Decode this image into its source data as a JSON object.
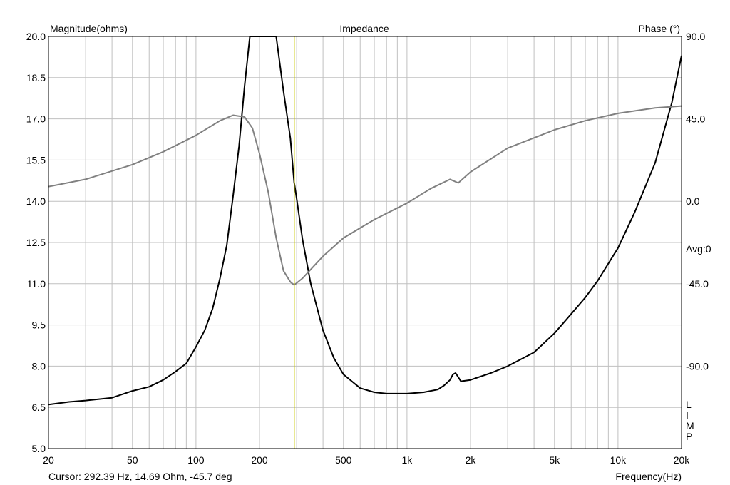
{
  "chart_data": {
    "type": "line",
    "title": "Impedance",
    "ylabel": "Magnitude(ohms)",
    "y2label": "Phase (°)",
    "xlabel": "Frequency(Hz)",
    "x_scale": "log",
    "xlim": [
      20,
      20000
    ],
    "ylim": [
      5.0,
      20.0
    ],
    "y2lim": [
      -135,
      90
    ],
    "x_ticks": [
      {
        "v": 20,
        "t": "20"
      },
      {
        "v": 50,
        "t": "50"
      },
      {
        "v": 100,
        "t": "100"
      },
      {
        "v": 200,
        "t": "200"
      },
      {
        "v": 500,
        "t": "500"
      },
      {
        "v": 1000,
        "t": "1k"
      },
      {
        "v": 2000,
        "t": "2k"
      },
      {
        "v": 5000,
        "t": "5k"
      },
      {
        "v": 10000,
        "t": "10k"
      },
      {
        "v": 20000,
        "t": "20k"
      }
    ],
    "y_ticks": [
      "5.0",
      "6.5",
      "8.0",
      "9.5",
      "11.0",
      "12.5",
      "14.0",
      "15.5",
      "17.0",
      "18.5",
      "20.0"
    ],
    "y2_ticks": [
      {
        "v": 90,
        "t": "90.0"
      },
      {
        "v": 45,
        "t": "45.0"
      },
      {
        "v": 0,
        "t": "0.0"
      },
      {
        "v": -45,
        "t": "-45.0"
      },
      {
        "v": -90,
        "t": "-90.0"
      }
    ],
    "avg_label": "Avg:0",
    "side_letters": [
      "L",
      "I",
      "M",
      "P"
    ],
    "grid": true,
    "cursor": {
      "x": 292.39,
      "text": "Cursor: 292.39 Hz, 14.69 Ohm, -45.7 deg"
    },
    "series": [
      {
        "axis": "left",
        "color": "#000000",
        "x": [
          20,
          25,
          30,
          40,
          50,
          60,
          70,
          80,
          90,
          100,
          110,
          120,
          130,
          140,
          150,
          160,
          170,
          180,
          185,
          190,
          240,
          260,
          280,
          292,
          300,
          320,
          350,
          400,
          450,
          500,
          600,
          700,
          800,
          1000,
          1200,
          1400,
          1500,
          1600,
          1650,
          1700,
          1750,
          1800,
          2000,
          2500,
          3000,
          4000,
          5000,
          6000,
          7000,
          8000,
          10000,
          12000,
          15000,
          18000,
          20000
        ],
        "values": [
          6.6,
          6.7,
          6.75,
          6.85,
          7.1,
          7.25,
          7.5,
          7.8,
          8.1,
          8.7,
          9.3,
          10.1,
          11.2,
          12.4,
          14.2,
          16.0,
          18.2,
          20.0,
          20.0,
          20.0,
          20.0,
          18.0,
          16.3,
          14.69,
          14.1,
          12.6,
          11.0,
          9.3,
          8.3,
          7.7,
          7.2,
          7.05,
          7.0,
          7.0,
          7.05,
          7.15,
          7.3,
          7.5,
          7.7,
          7.75,
          7.6,
          7.45,
          7.5,
          7.75,
          8.0,
          8.5,
          9.2,
          9.9,
          10.5,
          11.1,
          12.3,
          13.6,
          15.4,
          17.6,
          19.3
        ]
      },
      {
        "axis": "right",
        "color": "#808080",
        "x": [
          20,
          30,
          50,
          70,
          100,
          130,
          150,
          170,
          185,
          200,
          220,
          240,
          260,
          280,
          292,
          320,
          400,
          500,
          700,
          1000,
          1300,
          1600,
          1750,
          2000,
          3000,
          5000,
          7000,
          10000,
          15000,
          20000
        ],
        "values": [
          8,
          12,
          20,
          27,
          36,
          44,
          47,
          46,
          40,
          26,
          5,
          -20,
          -38,
          -44,
          -45.7,
          -42,
          -30,
          -20,
          -10,
          -1,
          7,
          12,
          10,
          16,
          29,
          39,
          44,
          48,
          51,
          52
        ]
      }
    ]
  }
}
